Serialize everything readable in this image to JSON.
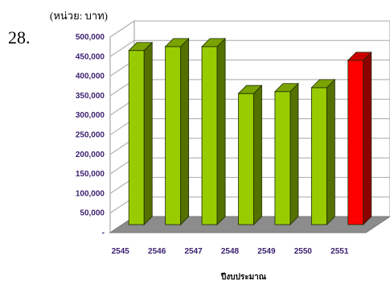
{
  "item_number": "28.",
  "unit_note": "(หน่วย: บาท)",
  "chart_data": {
    "type": "bar",
    "title": "",
    "xlabel": "ปีงบประมาณ",
    "ylabel": "",
    "ylim": [
      0,
      500000
    ],
    "yticks": [
      0,
      50000,
      100000,
      150000,
      200000,
      250000,
      300000,
      350000,
      400000,
      450000,
      500000
    ],
    "ytick_labels": [
      "-",
      "50,000",
      "100,000",
      "150,000",
      "200,000",
      "250,000",
      "300,000",
      "350,000",
      "400,000",
      "450,000",
      "500,000"
    ],
    "categories": [
      "2545",
      "2546",
      "2547",
      "2548",
      "2549",
      "2550",
      "2551"
    ],
    "values": [
      445000,
      455000,
      455000,
      335000,
      340000,
      350000,
      420000
    ],
    "bar_colors": [
      "#99cc00",
      "#99cc00",
      "#99cc00",
      "#99cc00",
      "#99cc00",
      "#99cc00",
      "#ff0000"
    ],
    "grid": true,
    "legend": "none",
    "style": "3d-column"
  }
}
